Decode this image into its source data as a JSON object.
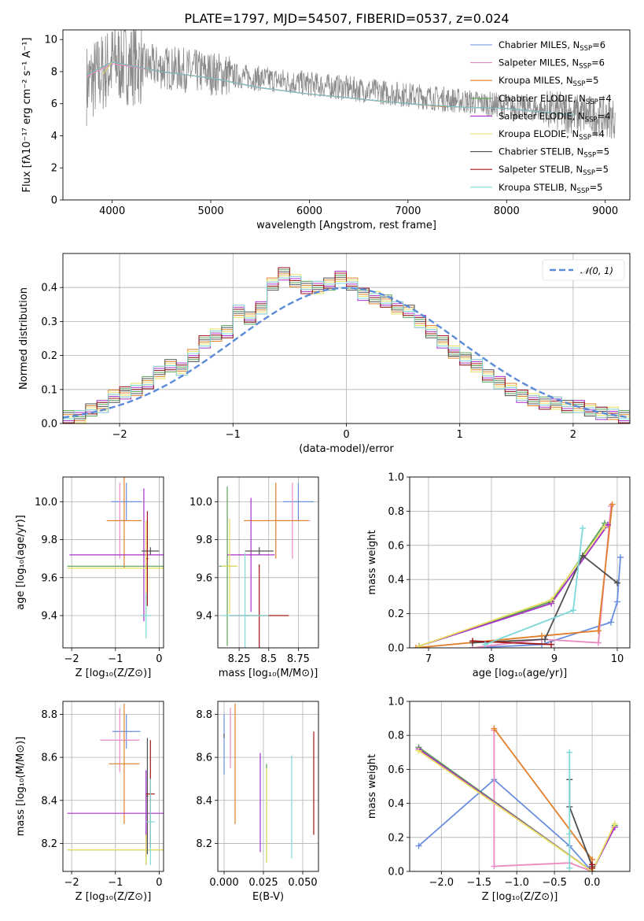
{
  "figure": {
    "title": "PLATE=1797, MJD=54507, FIBERID=0537, z=0.024"
  },
  "colors": {
    "Chabrier MILES": "#6a8fe0",
    "Salpeter MILES": "#ea8ac0",
    "Kroupa MILES": "#e0802a",
    "Chabrier ELODIE": "#5aa05a",
    "Salpeter ELODIE": "#a830c8",
    "Kroupa ELODIE": "#e6e060",
    "Chabrier STELIB": "#505050",
    "Salpeter STELIB": "#a01818",
    "Kroupa STELIB": "#7fd8d8",
    "gaussian": "#5b8bd8",
    "data": "#8a8a8a"
  },
  "chart_data": [
    {
      "id": "spectrum",
      "type": "line",
      "xlabel": "wavelength [Angstrom, rest frame]",
      "ylabel": "Flux [fλ10⁻¹⁷ erg cm⁻² s⁻¹ A⁻¹]",
      "xlim": [
        3500,
        9250
      ],
      "ylim": [
        0,
        10.6
      ],
      "xticks": [
        4000,
        5000,
        6000,
        7000,
        8000,
        9000
      ],
      "yticks": [
        0,
        2,
        4,
        6,
        8,
        10
      ],
      "legend_position": "top-right",
      "series": [
        {
          "name": "Chabrier MILES",
          "label_base": "Chabrier MILES, N",
          "label_sub": "SSP",
          "label_tail": "=6",
          "x": [
            3740,
            4000,
            4500,
            5000,
            5500,
            6000,
            6500,
            7000,
            7400
          ],
          "y": [
            7.8,
            8.6,
            8.0,
            7.6,
            7.0,
            6.6,
            6.3,
            6.0,
            5.8
          ]
        },
        {
          "name": "Salpeter MILES",
          "label_base": "Salpeter MILES, N",
          "label_sub": "SSP",
          "label_tail": "=6",
          "x": [
            3740,
            4000,
            4500,
            5000,
            5500,
            6000,
            6500,
            7000,
            7400
          ],
          "y": [
            7.7,
            8.5,
            8.0,
            7.6,
            7.0,
            6.6,
            6.3,
            6.0,
            5.8
          ]
        },
        {
          "name": "Kroupa MILES",
          "label_base": "Kroupa MILES, N",
          "label_sub": "SSP",
          "label_tail": "=5",
          "x": [
            3740,
            4000,
            4500,
            5000,
            5500,
            6000,
            6500,
            7000,
            7400
          ],
          "y": [
            7.8,
            8.6,
            8.0,
            7.6,
            7.0,
            6.6,
            6.3,
            6.0,
            5.8
          ]
        },
        {
          "name": "Chabrier ELODIE",
          "label_base": "Chabrier ELODIE, N",
          "label_sub": "SSP",
          "label_tail": "=4",
          "x": [
            3900,
            4000,
            4500,
            5000,
            5500,
            6000,
            6500,
            6800
          ],
          "y": [
            7.8,
            8.6,
            8.0,
            7.6,
            7.0,
            6.6,
            6.3,
            6.1
          ]
        },
        {
          "name": "Salpeter ELODIE",
          "label_base": "Salpeter ELODIE, N",
          "label_sub": "SSP",
          "label_tail": "=4",
          "x": [
            3900,
            4000,
            4500,
            5000,
            5500,
            6000,
            6500,
            6800
          ],
          "y": [
            7.8,
            8.6,
            8.0,
            7.6,
            7.0,
            6.6,
            6.3,
            6.1
          ]
        },
        {
          "name": "Kroupa ELODIE",
          "label_base": "Kroupa ELODIE, N",
          "label_sub": "SSP",
          "label_tail": "=4",
          "x": [
            3900,
            4000,
            4500,
            5000,
            5500,
            6000,
            6500,
            6800
          ],
          "y": [
            7.8,
            8.6,
            8.0,
            7.6,
            7.0,
            6.6,
            6.3,
            6.1
          ]
        },
        {
          "name": "Chabrier STELIB",
          "label_base": "Chabrier STELIB, N",
          "label_sub": "SSP",
          "label_tail": "=5",
          "x": [
            3740,
            4000,
            4500,
            5000,
            5500,
            6000,
            6500,
            7000,
            7500,
            8000,
            8500,
            8700
          ],
          "y": [
            7.8,
            8.6,
            8.0,
            7.6,
            7.0,
            6.6,
            6.3,
            6.0,
            5.8,
            5.7,
            5.4,
            5.3
          ]
        },
        {
          "name": "Salpeter STELIB",
          "label_base": "Salpeter STELIB, N",
          "label_sub": "SSP",
          "label_tail": "=5",
          "x": [
            3740,
            4000,
            4500,
            5000,
            5500,
            6000,
            6500,
            7000,
            7500,
            8000,
            8500,
            8700
          ],
          "y": [
            7.8,
            8.6,
            8.0,
            7.6,
            7.0,
            6.6,
            6.3,
            6.0,
            5.8,
            5.7,
            5.4,
            5.3
          ]
        },
        {
          "name": "Kroupa STELIB",
          "label_base": "Kroupa STELIB, N",
          "label_sub": "SSP",
          "label_tail": "=5",
          "x": [
            3740,
            4000,
            4500,
            5000,
            5500,
            6000,
            6500,
            7000,
            7500,
            8000,
            8500,
            8700
          ],
          "y": [
            7.8,
            8.6,
            8.0,
            7.6,
            7.0,
            6.6,
            6.3,
            6.0,
            5.8,
            5.7,
            5.4,
            5.3
          ]
        }
      ]
    },
    {
      "id": "residuals",
      "type": "line",
      "xlabel": "(data-model)/error",
      "ylabel": "Normed distribution",
      "xlim": [
        -2.5,
        2.5
      ],
      "ylim": [
        0,
        0.5
      ],
      "xticks": [
        -2,
        -1,
        0,
        1,
        2
      ],
      "yticks": [
        0.0,
        0.1,
        0.2,
        0.3,
        0.4
      ],
      "legend_position": "top-right",
      "legend_label": "𝒩(0, 1)",
      "histogram_step": 0.1,
      "histogram_start": -2.5,
      "histogram_values": [
        0.02,
        0.02,
        0.04,
        0.05,
        0.08,
        0.09,
        0.1,
        0.12,
        0.15,
        0.17,
        0.16,
        0.2,
        0.24,
        0.26,
        0.27,
        0.33,
        0.31,
        0.34,
        0.41,
        0.44,
        0.42,
        0.4,
        0.4,
        0.41,
        0.43,
        0.41,
        0.38,
        0.37,
        0.36,
        0.34,
        0.33,
        0.3,
        0.27,
        0.24,
        0.21,
        0.19,
        0.17,
        0.14,
        0.12,
        0.1,
        0.08,
        0.07,
        0.06,
        0.06,
        0.05,
        0.05,
        0.04,
        0.03,
        0.03,
        0.02
      ]
    },
    {
      "id": "age-vs-Z",
      "type": "scatter",
      "xlabel": "Z [log₁₀(Z/Z⊙)]",
      "ylabel": "age  [log₁₀(age/yr)]",
      "xlim": [
        -2.2,
        0.1
      ],
      "ylim": [
        9.23,
        10.13
      ],
      "xticks": [
        -2,
        -1,
        0
      ],
      "yticks": [
        9.4,
        9.6,
        9.8,
        10.0
      ],
      "points": [
        {
          "series": "Chabrier MILES",
          "x": -0.75,
          "y": 10.0,
          "xerr": 0.35,
          "yerr": 0.1
        },
        {
          "series": "Salpeter MILES",
          "x": -0.9,
          "y": 9.9,
          "xerr": 0.1,
          "yerr": 0.2
        },
        {
          "series": "Kroupa MILES",
          "x": -0.8,
          "y": 9.9,
          "xerr": 0.4,
          "yerr": 0.25
        },
        {
          "series": "Chabrier ELODIE",
          "x": -0.3,
          "y": 9.66,
          "xerr": 1.8,
          "yerr": 0.02
        },
        {
          "series": "Salpeter ELODIE",
          "x": -0.35,
          "y": 9.72,
          "xerr": 1.7,
          "yerr": 0.35
        },
        {
          "series": "Kroupa ELODIE",
          "x": -0.3,
          "y": 9.65,
          "xerr": 1.8,
          "yerr": 0.25
        },
        {
          "series": "Chabrier STELIB",
          "x": -0.2,
          "y": 9.74,
          "xerr": 0.2,
          "yerr": 0.02
        },
        {
          "series": "Salpeter STELIB",
          "x": -0.27,
          "y": 9.7,
          "xerr": 0.02,
          "yerr": 0.25
        },
        {
          "series": "Kroupa STELIB",
          "x": -0.3,
          "y": 9.4,
          "xerr": 0.12,
          "yerr": 0.12
        }
      ]
    },
    {
      "id": "age-vs-mass",
      "type": "scatter",
      "xlabel": "mass [log₁₀(M/M⊙)]",
      "ylabel": "",
      "xlim": [
        8.07,
        8.92
      ],
      "ylim": [
        9.23,
        10.13
      ],
      "xticks": [
        8.25,
        8.5,
        8.75
      ],
      "yticks": [
        9.4,
        9.6,
        9.8,
        10.0
      ],
      "points": [
        {
          "series": "Chabrier MILES",
          "x": 8.75,
          "y": 10.0,
          "xerr": 0.13,
          "yerr": 0.1
        },
        {
          "series": "Salpeter MILES",
          "x": 8.7,
          "y": 9.9,
          "xerr": 0.15,
          "yerr": 0.2
        },
        {
          "series": "Kroupa MILES",
          "x": 8.56,
          "y": 9.9,
          "xerr": 0.27,
          "yerr": 0.2
        },
        {
          "series": "Chabrier ELODIE",
          "x": 8.15,
          "y": 9.66,
          "xerr": 0.07,
          "yerr": 0.42
        },
        {
          "series": "Salpeter ELODIE",
          "x": 8.35,
          "y": 9.72,
          "xerr": 0.2,
          "yerr": 0.3
        },
        {
          "series": "Kroupa ELODIE",
          "x": 8.17,
          "y": 9.66,
          "xerr": 0.07,
          "yerr": 0.25
        },
        {
          "series": "Chabrier STELIB",
          "x": 8.42,
          "y": 9.74,
          "xerr": 0.12,
          "yerr": 0.02
        },
        {
          "series": "Salpeter STELIB",
          "x": 8.42,
          "y": 9.4,
          "xerr": 0.25,
          "yerr": 0.27
        },
        {
          "series": "Kroupa STELIB",
          "x": 8.3,
          "y": 9.4,
          "xerr": 0.2,
          "yerr": 0.33
        }
      ]
    },
    {
      "id": "weight-vs-age",
      "type": "line",
      "xlabel": "age  [log₁₀(age/yr)]",
      "ylabel": "mass weight",
      "xlim": [
        6.7,
        10.2
      ],
      "ylim": [
        0,
        1.0
      ],
      "xticks": [
        7,
        8,
        9,
        10
      ],
      "yticks": [
        0.0,
        0.2,
        0.4,
        0.6,
        0.8,
        1.0
      ],
      "series": [
        {
          "name": "Chabrier MILES",
          "x": [
            7.7,
            8.8,
            9.9,
            10.0,
            10.05
          ],
          "y": [
            0.0,
            0.02,
            0.15,
            0.27,
            0.53
          ]
        },
        {
          "name": "Salpeter MILES",
          "x": [
            7.7,
            8.8,
            9.7,
            9.9
          ],
          "y": [
            0.0,
            0.05,
            0.03,
            0.83
          ]
        },
        {
          "name": "Kroupa MILES",
          "x": [
            6.8,
            8.8,
            9.7,
            9.92
          ],
          "y": [
            0.0,
            0.07,
            0.1,
            0.84
          ]
        },
        {
          "name": "Chabrier ELODIE",
          "x": [
            6.85,
            8.95,
            9.8
          ],
          "y": [
            0.01,
            0.27,
            0.73
          ]
        },
        {
          "name": "Salpeter ELODIE",
          "x": [
            6.85,
            8.95,
            9.85
          ],
          "y": [
            0.01,
            0.26,
            0.72
          ]
        },
        {
          "name": "Kroupa ELODIE",
          "x": [
            6.85,
            8.95,
            9.8
          ],
          "y": [
            0.01,
            0.28,
            0.71
          ]
        },
        {
          "name": "Chabrier STELIB",
          "x": [
            7.7,
            8.85,
            9.45,
            10.0
          ],
          "y": [
            0.03,
            0.05,
            0.54,
            0.38
          ]
        },
        {
          "name": "Salpeter STELIB",
          "x": [
            7.7,
            8.95
          ],
          "y": [
            0.04,
            0.02
          ]
        },
        {
          "name": "Kroupa STELIB",
          "x": [
            7.9,
            9.3,
            9.45
          ],
          "y": [
            0.02,
            0.22,
            0.7
          ]
        }
      ]
    },
    {
      "id": "mass-vs-Z",
      "type": "scatter",
      "xlabel": "Z [log₁₀(Z/Z⊙)]",
      "ylabel": "mass [log₁₀(M/M⊙)]",
      "xlim": [
        -2.2,
        0.1
      ],
      "ylim": [
        8.07,
        8.86
      ],
      "xticks": [
        -2,
        -1,
        0
      ],
      "yticks": [
        8.2,
        8.4,
        8.6,
        8.8
      ],
      "points": [
        {
          "series": "Chabrier MILES",
          "x": -0.75,
          "y": 8.72,
          "xerr": 0.32,
          "yerr": 0.08
        },
        {
          "series": "Salpeter MILES",
          "x": -0.9,
          "y": 8.68,
          "xerr": 0.45,
          "yerr": 0.15
        },
        {
          "series": "Kroupa MILES",
          "x": -0.8,
          "y": 8.57,
          "xerr": 0.35,
          "yerr": 0.28
        },
        {
          "series": "Chabrier ELODIE",
          "x": -0.3,
          "y": 8.17,
          "xerr": 1.8,
          "yerr": 0.07
        },
        {
          "series": "Salpeter ELODIE",
          "x": -0.3,
          "y": 8.34,
          "xerr": 1.8,
          "yerr": 0.2
        },
        {
          "series": "Kroupa ELODIE",
          "x": -0.3,
          "y": 8.17,
          "xerr": 1.8,
          "yerr": 0.07
        },
        {
          "series": "Chabrier STELIB",
          "x": -0.27,
          "y": 8.42,
          "xerr": 0.02,
          "yerr": 0.27
        },
        {
          "series": "Salpeter STELIB",
          "x": -0.2,
          "y": 8.43,
          "xerr": 0.1,
          "yerr": 0.25
        },
        {
          "series": "Kroupa STELIB",
          "x": -0.2,
          "y": 8.3,
          "xerr": 0.1,
          "yerr": 0.2
        }
      ]
    },
    {
      "id": "mass-vs-EBV",
      "type": "scatter",
      "xlabel": "E(B-V)",
      "ylabel": "",
      "xlim": [
        -0.004,
        0.06
      ],
      "ylim": [
        8.07,
        8.86
      ],
      "xticks": [
        0.0,
        0.025,
        0.05
      ],
      "xticklabels": [
        "0.000",
        "0.025",
        "0.050"
      ],
      "yticks": [
        8.2,
        8.4,
        8.6,
        8.8
      ],
      "points": [
        {
          "series": "Chabrier MILES",
          "x": 0.0,
          "y": 8.66,
          "xerr": 0,
          "yerr": 0.14
        },
        {
          "series": "Salpeter MILES",
          "x": 0.004,
          "y": 8.69,
          "xerr": 0,
          "yerr": 0.14
        },
        {
          "series": "Kroupa MILES",
          "x": 0.007,
          "y": 8.57,
          "xerr": 0,
          "yerr": 0.28
        },
        {
          "series": "Chabrier ELODIE",
          "x": 0.027,
          "y": 8.34,
          "xerr": 0,
          "yerr": 0.23
        },
        {
          "series": "Salpeter ELODIE",
          "x": 0.023,
          "y": 8.39,
          "xerr": 0,
          "yerr": 0.23
        },
        {
          "series": "Kroupa ELODIE",
          "x": 0.027,
          "y": 8.33,
          "xerr": 0,
          "yerr": 0.22
        },
        {
          "series": "Chabrier STELIB",
          "x": 0.0,
          "y": 8.7,
          "xerr": 0,
          "yerr": 0.01
        },
        {
          "series": "Salpeter STELIB",
          "x": 0.057,
          "y": 8.48,
          "xerr": 0,
          "yerr": 0.24
        },
        {
          "series": "Kroupa STELIB",
          "x": 0.043,
          "y": 8.37,
          "xerr": 0,
          "yerr": 0.24
        }
      ]
    },
    {
      "id": "weight-vs-Z",
      "type": "line",
      "xlabel": "Z [log₁₀(Z/Z⊙)]",
      "ylabel": "mass weight",
      "xlim": [
        -2.42,
        0.5
      ],
      "ylim": [
        0,
        1.0
      ],
      "xticks": [
        -2.0,
        -1.5,
        -1.0,
        -0.5,
        0.0
      ],
      "xticklabels": [
        "−2.0",
        "−1.5",
        "−1.0",
        "−0.5",
        "0.0"
      ],
      "yticks": [
        0.0,
        0.2,
        0.4,
        0.6,
        0.8,
        1.0
      ],
      "series": [
        {
          "name": "Chabrier MILES",
          "x": [
            -2.3,
            -1.3,
            -0.3,
            0.0
          ],
          "y": [
            0.15,
            0.54,
            0.15,
            0.0
          ]
        },
        {
          "name": "Salpeter MILES",
          "x": [
            -1.3,
            -1.3,
            -0.3,
            0.0
          ],
          "y": [
            0.83,
            0.03,
            0.05,
            0.0
          ]
        },
        {
          "name": "Kroupa MILES",
          "x": [
            -1.3,
            0.0,
            0.0
          ],
          "y": [
            0.84,
            0.07,
            0.0
          ]
        },
        {
          "name": "Chabrier ELODIE",
          "x": [
            -2.3,
            0.0,
            0.3
          ],
          "y": [
            0.73,
            0.0,
            0.27
          ]
        },
        {
          "name": "Salpeter ELODIE",
          "x": [
            -2.3,
            0.0,
            0.3
          ],
          "y": [
            0.72,
            0.0,
            0.26
          ]
        },
        {
          "name": "Kroupa ELODIE",
          "x": [
            -2.3,
            0.0,
            0.3
          ],
          "y": [
            0.71,
            0.0,
            0.28
          ]
        },
        {
          "name": "Chabrier STELIB",
          "x": [
            -0.3,
            -0.3,
            0.0
          ],
          "y": [
            0.54,
            0.38,
            0.03
          ]
        },
        {
          "name": "Salpeter STELIB",
          "x": [
            0.0,
            0.0
          ],
          "y": [
            0.04,
            0.02
          ]
        },
        {
          "name": "Kroupa STELIB",
          "x": [
            -0.3,
            -0.3,
            -0.3
          ],
          "y": [
            0.7,
            0.22,
            0.02
          ]
        }
      ]
    }
  ]
}
